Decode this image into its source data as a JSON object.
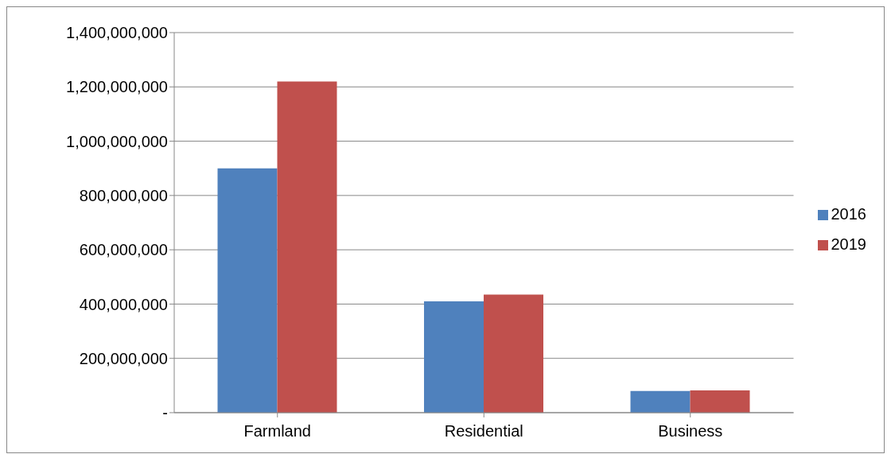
{
  "chart_data": {
    "type": "bar",
    "categories": [
      "Farmland",
      "Residential",
      "Business"
    ],
    "series": [
      {
        "name": "2016",
        "color": "#4f81bd",
        "values": [
          900000000,
          410000000,
          80000000
        ]
      },
      {
        "name": "2019",
        "color": "#c0504d",
        "values": [
          1220000000,
          435000000,
          82000000
        ]
      }
    ],
    "ylim": [
      0,
      1400000000
    ],
    "yticks": [
      {
        "value": 0,
        "label": "-"
      },
      {
        "value": 200000000,
        "label": "200,000,000"
      },
      {
        "value": 400000000,
        "label": "400,000,000"
      },
      {
        "value": 600000000,
        "label": "600,000,000"
      },
      {
        "value": 800000000,
        "label": "800,000,000"
      },
      {
        "value": 1000000000,
        "label": "1,000,000,000"
      },
      {
        "value": 1200000000,
        "label": "1,200,000,000"
      },
      {
        "value": 1400000000,
        "label": "1,400,000,000"
      }
    ],
    "grid": "y",
    "legend": "right"
  }
}
